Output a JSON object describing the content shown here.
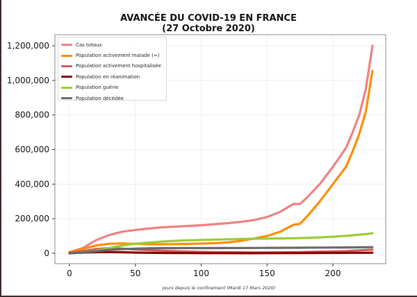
{
  "chart_data": {
    "type": "line",
    "title": "AVANCÉE DU COVID-19 EN FRANCE",
    "subtitle": "(27 Octobre 2020)",
    "xlabel": "Jours depuis le confinement (Mardi 17 Mars 2020)",
    "ylabel": "",
    "xlim": [
      -11,
      240
    ],
    "ylim": [
      -60000,
      1260000
    ],
    "x_ticks": [
      0,
      50,
      100,
      150,
      200
    ],
    "y_ticks": [
      0,
      200000,
      400000,
      600000,
      800000,
      1000000,
      1200000
    ],
    "y_tick_labels": [
      "0",
      "200,000",
      "400,000",
      "600,000",
      "800,000",
      "1,000,000",
      "1,200,000"
    ],
    "grid": true,
    "legend_position": "upper left",
    "x": [
      0,
      10,
      20,
      30,
      40,
      50,
      60,
      70,
      80,
      90,
      100,
      110,
      120,
      130,
      140,
      150,
      160,
      170,
      175,
      180,
      190,
      200,
      210,
      215,
      220,
      225,
      230
    ],
    "series": [
      {
        "name": "Cas totaux",
        "color": "#f08080",
        "values": [
          7000,
          30000,
          75000,
          105000,
          125000,
          135000,
          143000,
          150000,
          154000,
          158000,
          162000,
          168000,
          174000,
          182000,
          192000,
          210000,
          240000,
          285000,
          285000,
          320000,
          400000,
          500000,
          610000,
          700000,
          800000,
          950000,
          1200000
        ]
      },
      {
        "name": "Population activement malade (≈)",
        "color": "#ff8c00",
        "values": [
          6000,
          25000,
          45000,
          55000,
          57000,
          55000,
          52000,
          52000,
          53000,
          54000,
          56000,
          58000,
          63000,
          72000,
          85000,
          100000,
          125000,
          165000,
          170000,
          210000,
          300000,
          400000,
          500000,
          590000,
          690000,
          820000,
          1055000
        ]
      },
      {
        "name": "Population activement hospitalisée",
        "color": "#cd5c5c",
        "values": [
          3000,
          12000,
          24000,
          30000,
          27000,
          22000,
          18000,
          15000,
          12000,
          10000,
          8000,
          7000,
          6000,
          5500,
          5000,
          5200,
          5800,
          6500,
          7000,
          8000,
          9500,
          11000,
          13000,
          15000,
          17000,
          19000,
          21000
        ]
      },
      {
        "name": "Population en réanimation",
        "color": "#8b0000",
        "values": [
          1000,
          3500,
          6500,
          7000,
          6000,
          4000,
          3000,
          2000,
          1500,
          1200,
          1000,
          800,
          700,
          600,
          600,
          700,
          900,
          1200,
          1400,
          1600,
          1900,
          2200,
          2500,
          2700,
          2900,
          3000,
          3200
        ]
      },
      {
        "name": "Population guérie",
        "color": "#9acd32",
        "values": [
          0,
          5000,
          15000,
          30000,
          45000,
          55000,
          62000,
          68000,
          72000,
          75000,
          77000,
          79000,
          81000,
          83000,
          84000,
          85000,
          86000,
          87000,
          88000,
          89000,
          92000,
          96000,
          101000,
          104000,
          108000,
          111000,
          116000
        ]
      },
      {
        "name": "Population décédée",
        "color": "#696969",
        "values": [
          200,
          4000,
          12000,
          20000,
          24000,
          27000,
          28500,
          29500,
          29800,
          30000,
          30200,
          30300,
          30500,
          30700,
          30900,
          31200,
          31600,
          32000,
          32200,
          32400,
          32800,
          33200,
          33700,
          34000,
          34400,
          34900,
          35500
        ]
      }
    ]
  },
  "header": {
    "title": "AVANCÉE DU COVID-19 EN FRANCE",
    "subtitle": "(27 Octobre 2020)"
  },
  "legend": {
    "items": [
      {
        "label": "Cas totaux",
        "color": "#f08080"
      },
      {
        "label": "Population activement malade (≈)",
        "color": "#ff8c00"
      },
      {
        "label": "Population activement hospitalisée",
        "color": "#cd5c5c"
      },
      {
        "label": "Population en réanimation",
        "color": "#8b0000"
      },
      {
        "label": "Population guérie",
        "color": "#9acd32"
      },
      {
        "label": "Population décédée",
        "color": "#696969"
      }
    ]
  },
  "axes": {
    "xlabel": "Jours depuis le confinement (Mardi 17 Mars 2020)"
  }
}
